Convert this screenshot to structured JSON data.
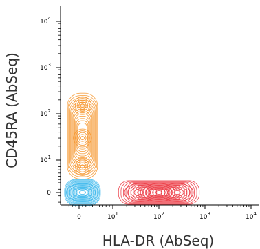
{
  "chart_data": {
    "type": "contour",
    "xlabel": "HLA-DR (AbSeq)",
    "ylabel": "CD45RA (AbSeq)",
    "x_scale": "biexponential",
    "y_scale": "biexponential",
    "x_ticks": [
      {
        "value": 0,
        "base": "0",
        "exp": ""
      },
      {
        "value": 10,
        "base": "10",
        "exp": "1"
      },
      {
        "value": 100,
        "base": "10",
        "exp": "2"
      },
      {
        "value": 1000,
        "base": "10",
        "exp": "3"
      },
      {
        "value": 10000,
        "base": "10",
        "exp": "4"
      }
    ],
    "y_ticks": [
      {
        "value": 0,
        "base": "0",
        "exp": ""
      },
      {
        "value": 10,
        "base": "10",
        "exp": "1"
      },
      {
        "value": 100,
        "base": "10",
        "exp": "2"
      },
      {
        "value": 1000,
        "base": "10",
        "exp": "3"
      },
      {
        "value": 10000,
        "base": "10",
        "exp": "4"
      }
    ],
    "populations": [
      {
        "color": "#3db8ec",
        "center": {
          "x": 1,
          "y": 0
        },
        "hotspots": [
          {
            "x": 1,
            "y": 0
          }
        ]
      },
      {
        "color": "#f6962e",
        "center": {
          "x": 1,
          "y": 40
        },
        "hotspots": [
          {
            "x": 1,
            "y": 150
          },
          {
            "x": 1,
            "y": 30
          },
          {
            "x": 1,
            "y": 8
          }
        ]
      },
      {
        "color": "#ec3d47",
        "center": {
          "x": 80,
          "y": 0
        },
        "hotspots": [
          {
            "x": 40,
            "y": 0
          },
          {
            "x": 100,
            "y": 0
          },
          {
            "x": 250,
            "y": 0
          }
        ]
      }
    ],
    "grid": false,
    "legend": false
  }
}
